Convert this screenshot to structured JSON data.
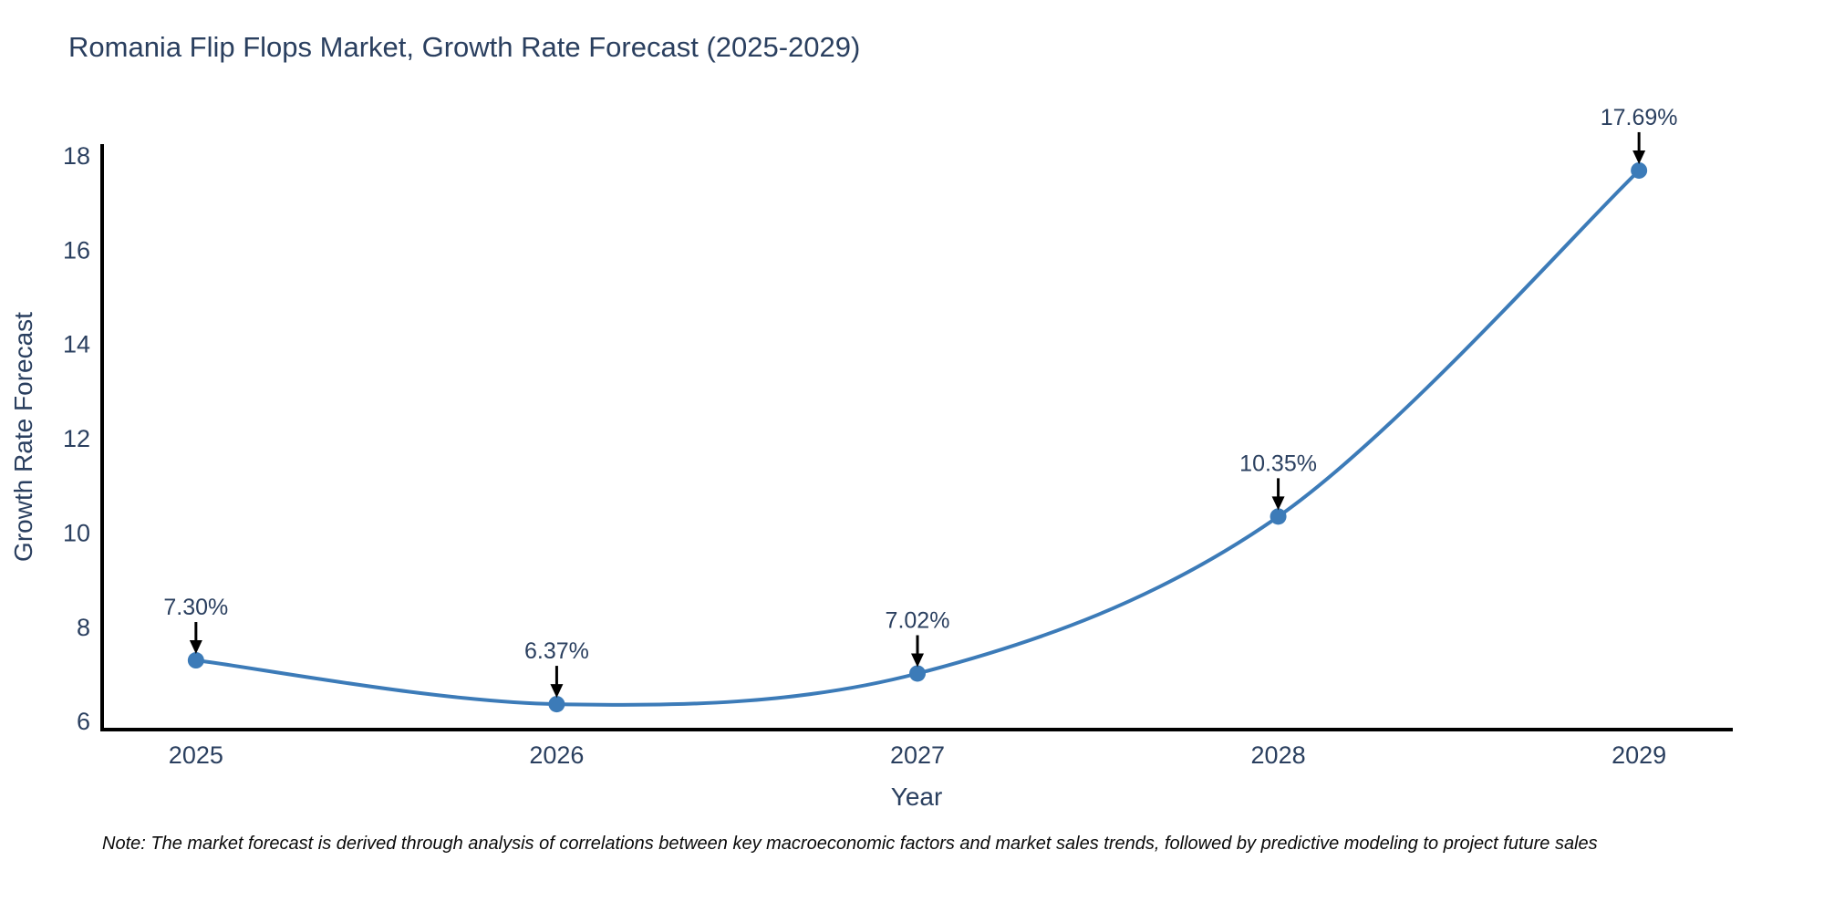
{
  "title": "Romania Flip Flops Market, Growth Rate Forecast (2025-2029)",
  "note": "Note: The market forecast is derived through analysis of correlations between key macroeconomic factors and market sales trends, followed by predictive modeling to project future sales",
  "chart_data": {
    "type": "line",
    "title": "Romania Flip Flops Market, Growth Rate Forecast (2025-2029)",
    "xlabel": "Year",
    "ylabel": "Growth Rate Forecast",
    "categories": [
      2025,
      2026,
      2027,
      2028,
      2029
    ],
    "values": [
      7.3,
      6.37,
      7.02,
      10.35,
      17.69
    ],
    "point_labels": [
      "7.30%",
      "6.37%",
      "7.02%",
      "10.35%",
      "17.69%"
    ],
    "y_ticks": [
      6,
      8,
      10,
      12,
      14,
      16,
      18
    ],
    "ylim": [
      5.83,
      18.25
    ],
    "xlim": [
      2024.74,
      2029.26
    ],
    "line_shape": "spline",
    "grid": false,
    "legend": false,
    "line_color": "#3c7bb8",
    "marker_color": "#3c7bb8",
    "axis_color": "#000000",
    "text_color": "#2a3f5f",
    "annotation_arrow_color": "#000000",
    "background_color": "#ffffff"
  }
}
